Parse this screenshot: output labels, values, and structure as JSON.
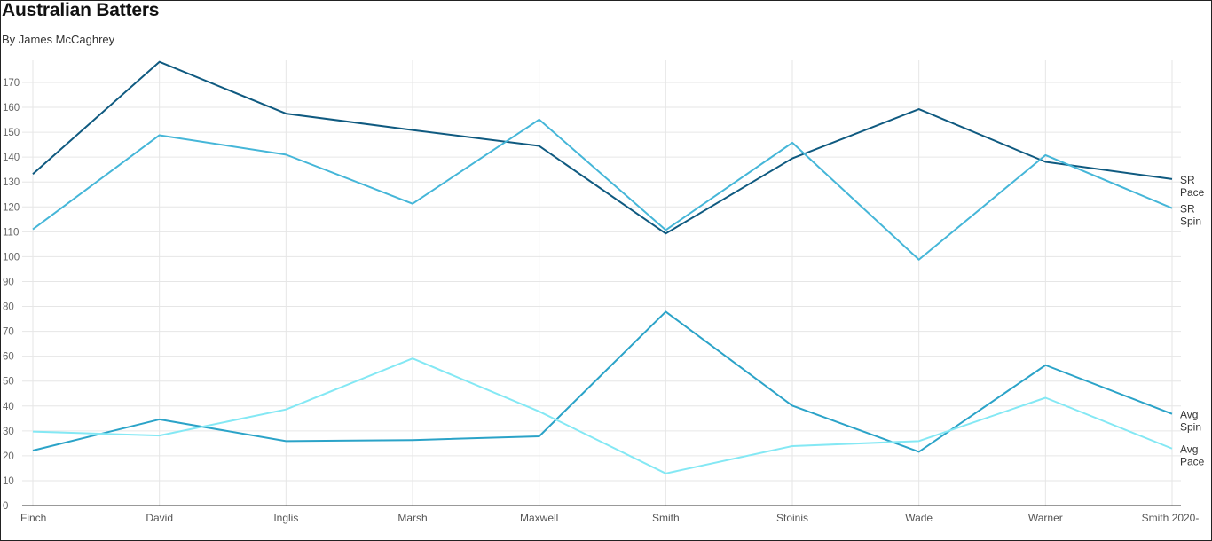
{
  "title": "Australian Batters",
  "subtitle": "By James McCaghrey",
  "chart_data": {
    "type": "line",
    "categories": [
      "Finch",
      "David",
      "Inglis",
      "Marsh",
      "Maxwell",
      "Smith",
      "Stoinis",
      "Wade",
      "Warner",
      "Smith 2020-"
    ],
    "ylim": [
      0,
      180
    ],
    "yticks": [
      0,
      10,
      20,
      30,
      40,
      50,
      60,
      70,
      80,
      90,
      100,
      110,
      120,
      130,
      140,
      150,
      160,
      170
    ],
    "grid": true,
    "series": [
      {
        "name": "SR Pace",
        "label_lines": [
          "SR",
          "Pace"
        ],
        "color": "#0f5a80",
        "values": [
          133.2,
          178.3,
          157.5,
          150.9,
          144.5,
          109.3,
          139.5,
          159.3,
          138.1,
          131.2
        ]
      },
      {
        "name": "SR Spin",
        "label_lines": [
          "SR",
          "Spin"
        ],
        "color": "#45b6d8",
        "values": [
          111.0,
          148.8,
          141.0,
          121.3,
          155.1,
          110.7,
          145.8,
          98.8,
          140.8,
          119.5
        ]
      },
      {
        "name": "Avg Spin",
        "label_lines": [
          "Avg",
          "Spin"
        ],
        "color": "#2ba3c8",
        "values": [
          22.1,
          34.6,
          25.9,
          26.3,
          27.8,
          77.9,
          40.1,
          21.6,
          56.4,
          36.8
        ]
      },
      {
        "name": "Avg Pace",
        "label_lines": [
          "Avg",
          "Pace"
        ],
        "color": "#84e8f4",
        "values": [
          29.7,
          28.1,
          38.6,
          59.1,
          37.8,
          12.9,
          23.9,
          25.9,
          43.3,
          22.9
        ]
      }
    ]
  }
}
